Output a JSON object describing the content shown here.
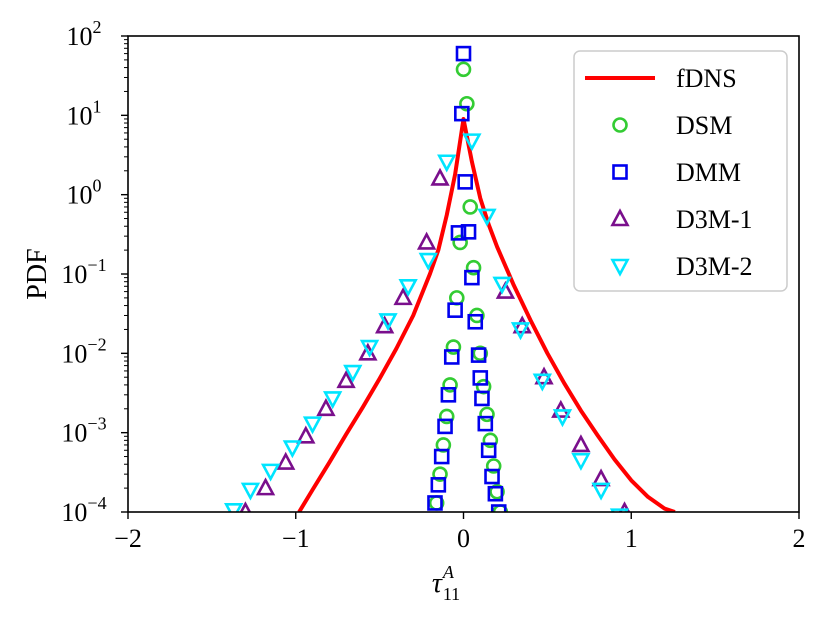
{
  "chart_data": {
    "type": "line",
    "title": "",
    "xlabel": "τ11A",
    "xlabel_main": "τ",
    "xlabel_sub": "11",
    "xlabel_sup": "A",
    "ylabel": "PDF",
    "xlim": [
      -2,
      2
    ],
    "ylim": [
      0.0001,
      100
    ],
    "yscale": "log",
    "x_ticks": [
      -2,
      -1,
      0,
      1,
      2
    ],
    "x_tick_labels": [
      "−2",
      "−1",
      "0",
      "1",
      "2"
    ],
    "y_ticks": [
      0.0001,
      0.001,
      0.01,
      0.1,
      1,
      10,
      100
    ],
    "y_tick_bases": [
      "10",
      "10",
      "10",
      "10",
      "10",
      "10",
      "10"
    ],
    "y_tick_exponents": [
      "−4",
      "−3",
      "−2",
      "−1",
      "0",
      "1",
      "2"
    ],
    "legend_position": "top-right",
    "series": [
      {
        "name": "fDNS",
        "kind": "line",
        "color": "#ff0000",
        "x": [
          -0.98,
          -0.9,
          -0.8,
          -0.7,
          -0.6,
          -0.5,
          -0.4,
          -0.3,
          -0.2,
          -0.15,
          -0.1,
          -0.05,
          0,
          0.05,
          0.1,
          0.15,
          0.2,
          0.3,
          0.4,
          0.5,
          0.6,
          0.7,
          0.8,
          0.9,
          1.0,
          1.1,
          1.2,
          1.26
        ],
        "y": [
          0.0001,
          0.00019,
          0.00042,
          0.00095,
          0.0021,
          0.0048,
          0.0115,
          0.03,
          0.1,
          0.2,
          0.55,
          1.8,
          9,
          2.6,
          0.9,
          0.42,
          0.22,
          0.072,
          0.026,
          0.01,
          0.0042,
          0.0019,
          0.00092,
          0.00046,
          0.00025,
          0.000155,
          0.00011,
          0.0001
        ]
      },
      {
        "name": "DSM",
        "kind": "marker",
        "marker": "circle",
        "color": "#33cc33",
        "x": [
          -0.16,
          -0.14,
          -0.12,
          -0.1,
          -0.08,
          -0.06,
          -0.04,
          -0.02,
          0,
          0.02,
          0.04,
          0.06,
          0.08,
          0.1,
          0.12,
          0.14,
          0.16,
          0.18,
          0.2,
          0.22
        ],
        "y": [
          0.00013,
          0.0003,
          0.0007,
          0.0016,
          0.004,
          0.012,
          0.05,
          0.25,
          38,
          14,
          0.7,
          0.12,
          0.03,
          0.01,
          0.0038,
          0.0017,
          0.0008,
          0.00038,
          0.00018,
          0.0001
        ]
      },
      {
        "name": "DMM",
        "kind": "marker",
        "marker": "square",
        "color": "#0000ee",
        "x": [
          -0.17,
          -0.15,
          -0.13,
          -0.11,
          -0.09,
          -0.07,
          -0.05,
          -0.03,
          -0.01,
          0.0,
          0.01,
          0.03,
          0.05,
          0.07,
          0.09,
          0.1,
          0.11,
          0.13,
          0.15,
          0.17,
          0.19,
          0.21
        ],
        "y": [
          0.00013,
          0.00022,
          0.0005,
          0.0012,
          0.003,
          0.009,
          0.035,
          0.33,
          10.5,
          60,
          1.45,
          0.34,
          0.09,
          0.025,
          0.0095,
          0.0049,
          0.0027,
          0.0013,
          0.0006,
          0.00028,
          0.00017,
          0.0001
        ]
      },
      {
        "name": "D3M-1",
        "kind": "marker",
        "marker": "triangle-up",
        "color": "#7a0f8c",
        "x": [
          -1.3,
          -1.18,
          -1.06,
          -0.94,
          -0.82,
          -0.7,
          -0.57,
          -0.47,
          -0.36,
          -0.22,
          -0.14,
          0.25,
          0.35,
          0.48,
          0.58,
          0.7,
          0.82,
          0.96
        ],
        "y": [
          0.0001,
          0.0002,
          0.00042,
          0.0009,
          0.002,
          0.0045,
          0.01,
          0.022,
          0.05,
          0.25,
          1.6,
          0.06,
          0.022,
          0.005,
          0.0019,
          0.0007,
          0.00026,
          0.0001
        ]
      },
      {
        "name": "D3M-2",
        "kind": "marker",
        "marker": "triangle-down",
        "color": "#00e5ff",
        "x": [
          -1.37,
          -1.27,
          -1.15,
          -1.02,
          -0.9,
          -0.78,
          -0.66,
          -0.56,
          -0.45,
          -0.33,
          -0.21,
          -0.1,
          0.05,
          0.14,
          0.23,
          0.34,
          0.47,
          0.59,
          0.7,
          0.82,
          0.93
        ],
        "y": [
          0.000105,
          0.00019,
          0.00033,
          0.00065,
          0.0013,
          0.0027,
          0.0058,
          0.012,
          0.026,
          0.07,
          0.15,
          2.6,
          4.8,
          0.54,
          0.075,
          0.02,
          0.0045,
          0.0016,
          0.00045,
          0.00019,
          9e-05
        ]
      }
    ]
  }
}
